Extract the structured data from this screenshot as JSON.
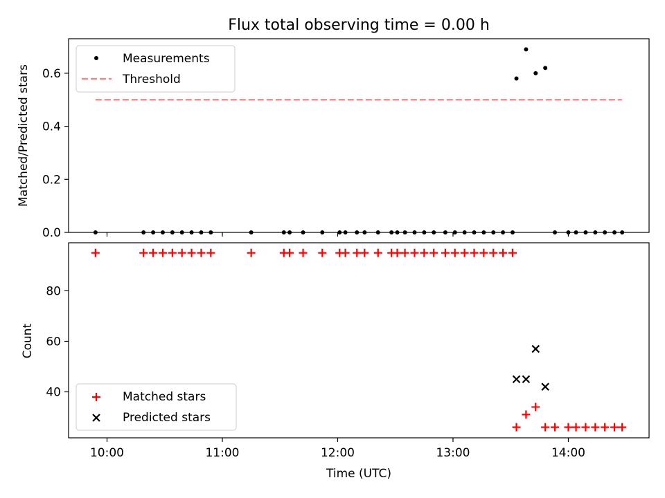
{
  "chart_data": [
    {
      "type": "scatter",
      "title": "Flux total observing time = 0.00 h",
      "xlabel": "",
      "ylabel": "Matched/Predicted stars",
      "xlim": [
        "09:40",
        "14:42"
      ],
      "ylim": [
        0,
        0.73
      ],
      "yticks": [
        "0.0",
        "0.2",
        "0.4",
        "0.6"
      ],
      "grid": false,
      "legend": {
        "placement": "upper-left",
        "entries": [
          {
            "label": "Measurements",
            "marker": "dot",
            "color": "#000000"
          },
          {
            "label": "Threshold",
            "marker": "dashed-line",
            "color": "#ff7f7f"
          }
        ]
      },
      "series": [
        {
          "name": "Measurements",
          "color": "#000000",
          "points": [
            [
              "09:54",
              0.0
            ],
            [
              "10:19",
              0.0
            ],
            [
              "10:24",
              0.0
            ],
            [
              "10:29",
              0.0
            ],
            [
              "10:34",
              0.0
            ],
            [
              "10:39",
              0.0
            ],
            [
              "10:44",
              0.0
            ],
            [
              "10:49",
              0.0
            ],
            [
              "10:54",
              0.0
            ],
            [
              "11:15",
              0.0
            ],
            [
              "11:32",
              0.0
            ],
            [
              "11:35",
              0.0
            ],
            [
              "11:42",
              0.0
            ],
            [
              "11:52",
              0.0
            ],
            [
              "12:01",
              0.0
            ],
            [
              "12:04",
              0.0
            ],
            [
              "12:10",
              0.0
            ],
            [
              "12:14",
              0.0
            ],
            [
              "12:21",
              0.0
            ],
            [
              "12:28",
              0.0
            ],
            [
              "12:31",
              0.0
            ],
            [
              "12:35",
              0.0
            ],
            [
              "12:40",
              0.0
            ],
            [
              "12:45",
              0.0
            ],
            [
              "12:50",
              0.0
            ],
            [
              "12:56",
              0.0
            ],
            [
              "13:01",
              0.0
            ],
            [
              "13:06",
              0.0
            ],
            [
              "13:11",
              0.0
            ],
            [
              "13:16",
              0.0
            ],
            [
              "13:21",
              0.0
            ],
            [
              "13:26",
              0.0
            ],
            [
              "13:31",
              0.0
            ],
            [
              "13:33",
              0.58
            ],
            [
              "13:38",
              0.69
            ],
            [
              "13:43",
              0.6
            ],
            [
              "13:48",
              0.62
            ],
            [
              "13:53",
              0.0
            ],
            [
              "14:00",
              0.0
            ],
            [
              "14:04",
              0.0
            ],
            [
              "14:09",
              0.0
            ],
            [
              "14:14",
              0.0
            ],
            [
              "14:19",
              0.0
            ],
            [
              "14:24",
              0.0
            ],
            [
              "14:28",
              0.0
            ]
          ]
        },
        {
          "name": "Threshold",
          "color": "#ff7f7f",
          "style": "dashed",
          "points": [
            [
              "09:54",
              0.5
            ],
            [
              "14:28",
              0.5
            ]
          ]
        }
      ]
    },
    {
      "type": "scatter",
      "title": "",
      "xlabel": "Time (UTC)",
      "ylabel": "Count",
      "xlim": [
        "09:40",
        "14:42"
      ],
      "xticks": [
        "10:00",
        "11:00",
        "12:00",
        "13:00",
        "14:00"
      ],
      "ylim": [
        21.8,
        99
      ],
      "yticks": [
        "40",
        "60",
        "80"
      ],
      "grid": false,
      "legend": {
        "placement": "lower-left",
        "entries": [
          {
            "label": "Matched stars",
            "marker": "plus",
            "color": "#ff0000"
          },
          {
            "label": "Predicted stars",
            "marker": "x",
            "color": "#000000"
          }
        ]
      },
      "series": [
        {
          "name": "Matched stars",
          "marker": "plus",
          "color": "#ff0000",
          "points": [
            [
              "09:54",
              95
            ],
            [
              "10:19",
              95
            ],
            [
              "10:24",
              95
            ],
            [
              "10:29",
              95
            ],
            [
              "10:34",
              95
            ],
            [
              "10:39",
              95
            ],
            [
              "10:44",
              95
            ],
            [
              "10:49",
              95
            ],
            [
              "10:54",
              95
            ],
            [
              "11:15",
              95
            ],
            [
              "11:32",
              95
            ],
            [
              "11:35",
              95
            ],
            [
              "11:42",
              95
            ],
            [
              "11:52",
              95
            ],
            [
              "12:01",
              95
            ],
            [
              "12:04",
              95
            ],
            [
              "12:10",
              95
            ],
            [
              "12:14",
              95
            ],
            [
              "12:21",
              95
            ],
            [
              "12:28",
              95
            ],
            [
              "12:31",
              95
            ],
            [
              "12:35",
              95
            ],
            [
              "12:40",
              95
            ],
            [
              "12:45",
              95
            ],
            [
              "12:50",
              95
            ],
            [
              "12:56",
              95
            ],
            [
              "13:01",
              95
            ],
            [
              "13:06",
              95
            ],
            [
              "13:11",
              95
            ],
            [
              "13:16",
              95
            ],
            [
              "13:21",
              95
            ],
            [
              "13:26",
              95
            ],
            [
              "13:31",
              95
            ],
            [
              "13:33",
              26
            ],
            [
              "13:38",
              31
            ],
            [
              "13:43",
              34
            ],
            [
              "13:48",
              26
            ],
            [
              "13:53",
              26
            ],
            [
              "14:00",
              26
            ],
            [
              "14:04",
              26
            ],
            [
              "14:09",
              26
            ],
            [
              "14:14",
              26
            ],
            [
              "14:19",
              26
            ],
            [
              "14:24",
              26
            ],
            [
              "14:28",
              26
            ]
          ]
        },
        {
          "name": "Predicted stars",
          "marker": "x",
          "color": "#000000",
          "points": [
            [
              "13:33",
              45
            ],
            [
              "13:38",
              45
            ],
            [
              "13:43",
              57
            ],
            [
              "13:48",
              42
            ]
          ]
        }
      ]
    }
  ]
}
